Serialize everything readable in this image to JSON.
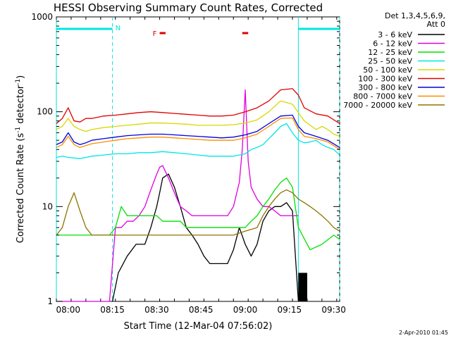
{
  "chart_data": {
    "type": "line",
    "title": "HESSI Observing Summary Count Rates, Corrected",
    "xlabel": "Start Time (12-Mar-04 07:56:02)",
    "ylabel": "Corrected Count Rate (s",
    "ylabel_exp1": "-1",
    "ylabel_mid": " detector",
    "ylabel_exp2": "-1",
    "ylabel_end": ")",
    "yscale": "log",
    "ylim": [
      1,
      1000
    ],
    "xlim_minutes": [
      476,
      572
    ],
    "x_ticks": [
      {
        "m": 480,
        "label": "08:00"
      },
      {
        "m": 495,
        "label": "08:15"
      },
      {
        "m": 510,
        "label": "08:30"
      },
      {
        "m": 525,
        "label": "08:45"
      },
      {
        "m": 540,
        "label": "09:00"
      },
      {
        "m": 555,
        "label": "09:15"
      },
      {
        "m": 570,
        "label": "09:30"
      }
    ],
    "y_ticks": [
      {
        "v": 1,
        "label": "1"
      },
      {
        "v": 10,
        "label": "10"
      },
      {
        "v": 100,
        "label": "100"
      },
      {
        "v": 1000,
        "label": "1000"
      }
    ],
    "legend": {
      "header1": "Det 1,3,4,5,6,9,",
      "header2": "Att 0",
      "entries": [
        {
          "label": "3 - 6 keV",
          "color": "#000000"
        },
        {
          "label": "6 - 12 keV",
          "color": "#e000e0"
        },
        {
          "label": "12 - 25 keV",
          "color": "#00e000"
        },
        {
          "label": "25 - 50 keV",
          "color": "#00e6e6"
        },
        {
          "label": "50 - 100 keV",
          "color": "#d8d800"
        },
        {
          "label": "100 - 300 keV",
          "color": "#e00000"
        },
        {
          "label": "300 - 800 keV",
          "color": "#0000e0"
        },
        {
          "label": "800 - 7000 keV",
          "color": "#ff8c00"
        },
        {
          "label": "7000 - 20000 keV",
          "color": "#8b7500"
        }
      ]
    },
    "annotations": {
      "night_marker": "N",
      "flare_marker": "F",
      "flare_color": "#e00000",
      "orbit_color": "#00e6e6",
      "night_bars": [
        [
          476,
          495
        ],
        [
          558,
          572
        ]
      ],
      "flare_bars": [
        [
          511,
          513
        ],
        [
          539,
          541
        ]
      ],
      "vlines_dashed": [
        495,
        572
      ],
      "vlines_solid": [
        476,
        558
      ],
      "saa_block": [
        558,
        561
      ]
    },
    "timestamp": "2-Apr-2010 01:45",
    "series": [
      {
        "name": "3 - 6 keV",
        "color": "#000000",
        "x": [
          495,
          497,
          500,
          503,
          506,
          508,
          510,
          511,
          512,
          514,
          516,
          518,
          520,
          522,
          524,
          526,
          528,
          530,
          532,
          534,
          536,
          538,
          540,
          542,
          544,
          546,
          548,
          550,
          552,
          554,
          556,
          558
        ],
        "y": [
          1,
          2,
          3,
          4,
          4,
          6,
          10,
          14,
          20,
          22,
          16,
          10,
          6,
          5,
          4,
          3,
          2.5,
          2.5,
          2.5,
          2.5,
          3.5,
          6,
          4,
          3,
          4,
          7,
          9,
          10,
          10,
          11,
          9,
          1
        ]
      },
      {
        "name": "6 - 12 keV",
        "color": "#e000e0",
        "x": [
          476,
          478,
          480,
          482,
          484,
          486,
          488,
          490,
          492,
          494,
          496,
          498,
          500,
          502,
          504,
          506,
          508,
          510,
          511,
          512,
          514,
          516,
          518,
          520,
          522,
          524,
          526,
          528,
          530,
          532,
          534,
          536,
          538,
          539,
          540,
          541,
          542,
          544,
          546,
          548,
          550,
          552,
          554,
          556,
          558
        ],
        "y": [
          1,
          1,
          1,
          1,
          1,
          1,
          1,
          1,
          1,
          1,
          6,
          6,
          7,
          7,
          8,
          10,
          15,
          22,
          26,
          27,
          20,
          14,
          10,
          9,
          8,
          8,
          8,
          8,
          8,
          8,
          8,
          10,
          18,
          40,
          170,
          30,
          16,
          12,
          10,
          10,
          9,
          8,
          8,
          8,
          8
        ]
      },
      {
        "name": "12 - 25 keV",
        "color": "#00e000",
        "x": [
          476,
          480,
          484,
          488,
          492,
          494,
          496,
          498,
          500,
          502,
          504,
          506,
          508,
          510,
          512,
          514,
          516,
          518,
          520,
          524,
          528,
          532,
          536,
          540,
          542,
          544,
          546,
          548,
          550,
          552,
          554,
          556,
          558,
          562,
          566,
          570,
          572
        ],
        "y": [
          5,
          5,
          5,
          5,
          5,
          5,
          6,
          10,
          8,
          8,
          8,
          8,
          8,
          8,
          7,
          7,
          7,
          7,
          6,
          6,
          6,
          6,
          6,
          6,
          7,
          8,
          10,
          12,
          15,
          18,
          20,
          16,
          6,
          3.5,
          4,
          5,
          4.5
        ]
      },
      {
        "name": "25 - 50 keV",
        "color": "#00e6e6",
        "x": [
          476,
          478,
          480,
          484,
          488,
          492,
          496,
          500,
          504,
          508,
          512,
          516,
          520,
          524,
          528,
          532,
          536,
          540,
          542,
          544,
          546,
          548,
          550,
          552,
          554,
          556,
          558,
          560,
          562,
          564,
          566,
          568,
          570,
          572
        ],
        "y": [
          33,
          34,
          33,
          32,
          34,
          35,
          36,
          36,
          37,
          37,
          38,
          37,
          36,
          35,
          34,
          34,
          34,
          36,
          40,
          42,
          45,
          52,
          60,
          70,
          75,
          60,
          50,
          47,
          48,
          50,
          45,
          42,
          40,
          35
        ]
      },
      {
        "name": "50 - 100 keV",
        "color": "#d8d800",
        "x": [
          476,
          478,
          480,
          482,
          484,
          486,
          488,
          492,
          496,
          500,
          504,
          508,
          512,
          516,
          520,
          524,
          528,
          532,
          536,
          540,
          544,
          548,
          552,
          556,
          560,
          564,
          566,
          568,
          570,
          572
        ],
        "y": [
          65,
          70,
          85,
          70,
          65,
          62,
          65,
          68,
          70,
          72,
          74,
          76,
          76,
          75,
          74,
          72,
          72,
          72,
          73,
          76,
          82,
          100,
          130,
          120,
          80,
          65,
          70,
          65,
          58,
          55
        ]
      },
      {
        "name": "100 - 300 keV",
        "color": "#e00000",
        "x": [
          476,
          478,
          480,
          482,
          484,
          486,
          488,
          492,
          496,
          500,
          504,
          508,
          512,
          516,
          520,
          524,
          528,
          532,
          536,
          540,
          544,
          548,
          552,
          556,
          558,
          560,
          564,
          568,
          572
        ],
        "y": [
          75,
          85,
          110,
          80,
          78,
          85,
          85,
          90,
          92,
          95,
          98,
          100,
          98,
          96,
          94,
          92,
          90,
          90,
          92,
          100,
          110,
          130,
          170,
          175,
          150,
          110,
          95,
          90,
          75
        ]
      },
      {
        "name": "300 - 800 keV",
        "color": "#0000e0",
        "x": [
          476,
          478,
          480,
          482,
          484,
          486,
          488,
          492,
          496,
          500,
          504,
          508,
          512,
          516,
          520,
          524,
          528,
          532,
          536,
          540,
          544,
          548,
          552,
          556,
          558,
          560,
          564,
          568,
          572
        ],
        "y": [
          45,
          48,
          60,
          48,
          45,
          47,
          50,
          52,
          54,
          56,
          57,
          58,
          58,
          57,
          56,
          55,
          54,
          53,
          54,
          57,
          62,
          75,
          90,
          92,
          70,
          60,
          55,
          50,
          42
        ]
      },
      {
        "name": "800 - 7000 keV",
        "color": "#ff8c00",
        "x": [
          476,
          478,
          480,
          482,
          484,
          486,
          488,
          492,
          496,
          500,
          504,
          508,
          512,
          516,
          520,
          524,
          528,
          532,
          536,
          540,
          544,
          548,
          552,
          556,
          558,
          560,
          564,
          568,
          572
        ],
        "y": [
          42,
          45,
          55,
          45,
          42,
          44,
          46,
          48,
          50,
          52,
          53,
          54,
          54,
          53,
          52,
          51,
          50,
          50,
          50,
          53,
          58,
          70,
          85,
          86,
          65,
          55,
          52,
          48,
          40
        ]
      },
      {
        "name": "7000 - 20000 keV",
        "color": "#8b7500",
        "x": [
          476,
          478,
          480,
          482,
          484,
          486,
          488,
          490,
          492,
          494,
          496,
          500,
          504,
          508,
          512,
          516,
          520,
          524,
          528,
          532,
          536,
          540,
          544,
          546,
          548,
          550,
          552,
          554,
          556,
          558,
          560,
          562,
          564,
          566,
          568,
          570,
          572
        ],
        "y": [
          5,
          6,
          10,
          14,
          9,
          6,
          5,
          5,
          5,
          5,
          5,
          5,
          5,
          5,
          5,
          5,
          5,
          5,
          5,
          5,
          5,
          5.5,
          6,
          8,
          10,
          12,
          14,
          15,
          14,
          12,
          11,
          10,
          9,
          8,
          7,
          6,
          5.5
        ]
      }
    ]
  }
}
